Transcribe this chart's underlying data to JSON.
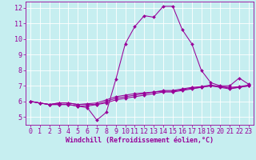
{
  "xlabel": "Windchill (Refroidissement éolien,°C)",
  "bg_color": "#c6eef0",
  "grid_color": "#b0dde0",
  "line_color": "#990099",
  "spine_color": "#440044",
  "xlim": [
    -0.5,
    23.5
  ],
  "ylim": [
    4.5,
    12.4
  ],
  "yticks": [
    5,
    6,
    7,
    8,
    9,
    10,
    11,
    12
  ],
  "xticks": [
    0,
    1,
    2,
    3,
    4,
    5,
    6,
    7,
    8,
    9,
    10,
    11,
    12,
    13,
    14,
    15,
    16,
    17,
    18,
    19,
    20,
    21,
    22,
    23
  ],
  "series": [
    [
      6.0,
      5.9,
      5.8,
      5.8,
      5.8,
      5.7,
      5.6,
      4.8,
      5.3,
      7.4,
      9.7,
      10.8,
      11.5,
      11.4,
      12.1,
      12.1,
      10.6,
      9.7,
      8.0,
      7.2,
      7.0,
      7.0,
      7.5,
      7.1
    ],
    [
      6.0,
      5.9,
      5.8,
      5.8,
      5.8,
      5.7,
      5.7,
      5.8,
      5.9,
      6.1,
      6.2,
      6.3,
      6.4,
      6.5,
      6.6,
      6.6,
      6.7,
      6.8,
      6.9,
      7.0,
      6.9,
      6.8,
      6.9,
      7.0
    ],
    [
      6.0,
      5.9,
      5.8,
      5.9,
      5.9,
      5.8,
      5.8,
      5.8,
      6.0,
      6.2,
      6.3,
      6.4,
      6.5,
      6.6,
      6.65,
      6.65,
      6.75,
      6.85,
      6.9,
      7.0,
      6.95,
      6.85,
      6.9,
      7.0
    ],
    [
      6.0,
      5.9,
      5.8,
      5.9,
      5.9,
      5.8,
      5.85,
      5.9,
      6.1,
      6.3,
      6.4,
      6.5,
      6.55,
      6.6,
      6.7,
      6.7,
      6.8,
      6.9,
      6.95,
      7.05,
      6.95,
      6.9,
      6.95,
      7.05
    ]
  ],
  "font_size": 6,
  "xlabel_size": 6,
  "marker_size": 2.0,
  "line_width": 0.75
}
